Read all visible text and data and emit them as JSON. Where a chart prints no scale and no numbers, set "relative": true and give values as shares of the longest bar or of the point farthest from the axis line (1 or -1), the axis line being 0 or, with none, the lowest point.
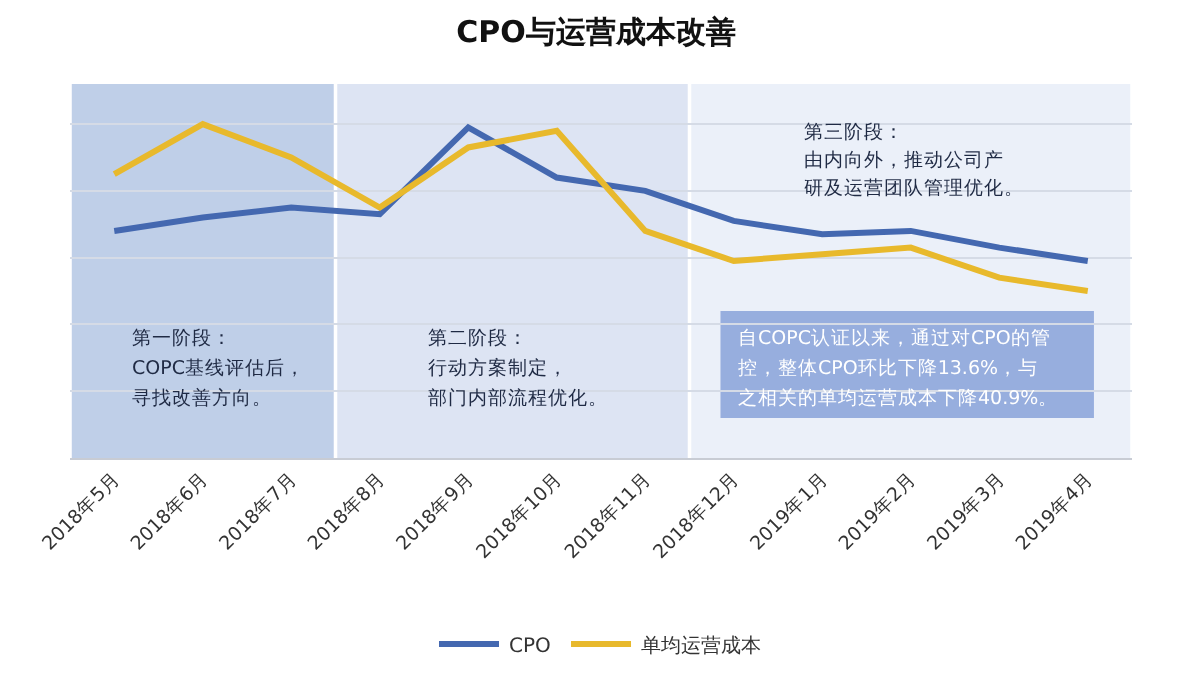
{
  "chart_data": {
    "type": "line",
    "title": "CPO与运营成本改善",
    "relative": true,
    "grid": "y",
    "legend": "bottom",
    "marker": "none",
    "line_style": "solid",
    "categories": [
      "2018年5月",
      "2018年6月",
      "2018年7月",
      "2018年8月",
      "2018年9月",
      "2018年10月",
      "2018年11月",
      "2018年12月",
      "2019年1月",
      "2019年2月",
      "2019年3月",
      "2019年4月"
    ],
    "series": [
      {
        "name": "CPO",
        "color": "#4468b0",
        "values": [
          0.68,
          0.72,
          0.75,
          0.73,
          0.99,
          0.84,
          0.8,
          0.71,
          0.67,
          0.68,
          0.63,
          0.59
        ]
      },
      {
        "name": "单均运营成本",
        "color": "#e8b92c",
        "values": [
          0.85,
          1.0,
          0.9,
          0.75,
          0.93,
          0.98,
          0.68,
          0.59,
          0.61,
          0.63,
          0.54,
          0.5
        ]
      }
    ],
    "bands": [
      {
        "axis": "x",
        "from": "2018年5月",
        "to": "2018年7月",
        "color": "#bfcfe8"
      },
      {
        "axis": "x",
        "from": "2018年8月",
        "to": "2018年11月",
        "color": "#dde4f3"
      },
      {
        "axis": "x",
        "from": "2018年12月",
        "to": "2019年4月",
        "color": "#ebf0f9"
      }
    ],
    "annotations": [
      "第一阶段：",
      "COPC基线评估后，",
      "寻找改善方向。",
      "第二阶段：",
      "行动方案制定，",
      "部门内部流程优化。",
      "第三阶段：",
      "由内向外，推动公司产",
      "研及运营团队管理优化。",
      "自COPC认证以来，通过对CPO的管",
      "控，整体CPO环比下降13.6%，与",
      "之相关的单均运营成本下降40.9%。"
    ]
  }
}
